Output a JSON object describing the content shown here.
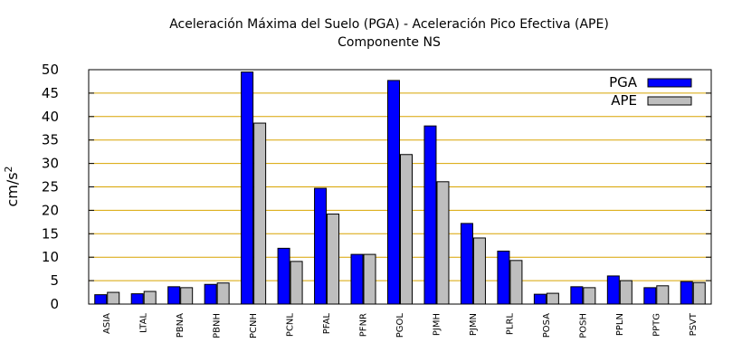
{
  "chart_data": {
    "type": "bar",
    "title": "Aceleración Máxima del Suelo (PGA) -  Aceleración Pico Efectiva (APE)",
    "subtitle": "Componente NS",
    "ylabel_base": "cm/s",
    "ylabel_exp": "2",
    "xlabel": "",
    "ylim": [
      0,
      50
    ],
    "yticks": [
      0,
      5,
      10,
      15,
      20,
      25,
      30,
      35,
      40,
      45,
      50
    ],
    "grid": true,
    "legend_position": "top-right",
    "categories": [
      "ASIA",
      "LTAL",
      "PBNA",
      "PBNH",
      "PCNH",
      "PCNL",
      "PFAL",
      "PFNR",
      "PGOL",
      "PJMH",
      "PJMN",
      "PLRL",
      "POSA",
      "POSH",
      "PPLN",
      "PPTG",
      "PSVT"
    ],
    "series": [
      {
        "name": "PGA",
        "color": "#0000ff",
        "values": [
          2.0,
          2.2,
          3.7,
          4.2,
          49.5,
          11.9,
          24.7,
          10.6,
          47.7,
          38.0,
          17.2,
          11.3,
          2.1,
          3.7,
          6.0,
          3.5,
          4.8
        ]
      },
      {
        "name": "APE",
        "color": "#bebebe",
        "values": [
          2.5,
          2.7,
          3.5,
          4.5,
          38.6,
          9.1,
          19.2,
          10.6,
          31.9,
          26.1,
          14.1,
          9.3,
          2.3,
          3.5,
          5.0,
          3.9,
          4.6
        ]
      }
    ]
  }
}
